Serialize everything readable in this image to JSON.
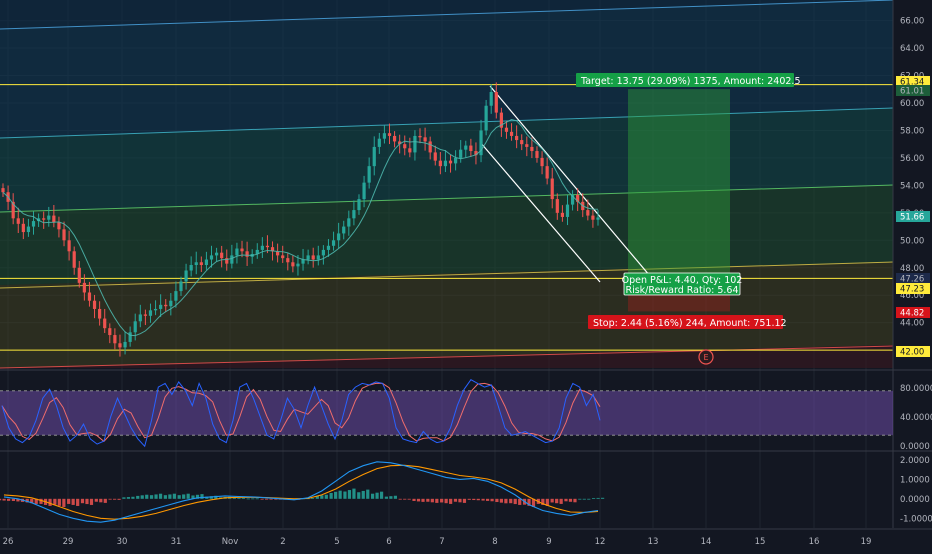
{
  "colors": {
    "background": "#131722",
    "grid": "#1f2430",
    "axis_text": "#b2b5be",
    "up": "#26a69a",
    "down": "#ef5350",
    "yellow_line": "#ffeb3b",
    "target_box": "#15a046",
    "stop_box": "#d5131a",
    "stoch_k": "#2962ff",
    "stoch_d": "#ef6c6c",
    "stoch_band": "#7e57c2",
    "macd_line": "#2196f3",
    "signal_line": "#ff9800",
    "hist_up": "#26a69a",
    "hist_down": "#ef5350"
  },
  "chart_data": [
    {
      "type": "candlestick",
      "title": "",
      "x_ticks": [
        "26",
        "29",
        "30",
        "31",
        "Nov",
        "2",
        "5",
        "6",
        "7",
        "8",
        "9",
        "12",
        "13",
        "14",
        "15",
        "16",
        "19"
      ],
      "y_ticks": [
        "66.00",
        "64.00",
        "62.00",
        "60.00",
        "58.00",
        "56.00",
        "54.00",
        "52.00",
        "50.00",
        "48.00",
        "46.00",
        "44.00",
        "42.00"
      ],
      "ylim": [
        40.7,
        67.5
      ],
      "closes": [
        53.5,
        52.8,
        51.6,
        51.2,
        50.6,
        51.0,
        51.4,
        51.6,
        51.5,
        51.8,
        51.3,
        50.8,
        50.0,
        49.2,
        48.0,
        46.9,
        46.2,
        45.6,
        45.0,
        44.3,
        43.6,
        43.1,
        42.5,
        42.2,
        42.6,
        43.3,
        44.1,
        44.6,
        44.5,
        44.9,
        45.0,
        45.3,
        45.2,
        45.6,
        46.3,
        47.0,
        47.8,
        48.2,
        48.4,
        48.2,
        48.6,
        48.9,
        49.1,
        48.7,
        48.3,
        48.9,
        49.4,
        49.2,
        48.8,
        49.0,
        49.3,
        49.6,
        49.5,
        49.2,
        48.9,
        48.7,
        48.4,
        48.1,
        48.3,
        48.6,
        48.9,
        48.6,
        48.9,
        49.3,
        49.6,
        50.0,
        50.5,
        51.0,
        51.6,
        52.2,
        53.0,
        54.2,
        55.4,
        56.8,
        57.4,
        57.8,
        57.6,
        57.2,
        57.0,
        56.7,
        56.4,
        57.6,
        57.5,
        57.2,
        56.4,
        55.8,
        55.4,
        55.8,
        55.6,
        56.0,
        56.6,
        56.9,
        56.5,
        56.2,
        58.0,
        59.8,
        60.8,
        59.3,
        58.2,
        57.9,
        57.6,
        57.3,
        57.0,
        56.8,
        56.5,
        56.0,
        55.4,
        54.5,
        53.0,
        52.0,
        51.7,
        52.6,
        53.3,
        52.8,
        52.2,
        51.8,
        51.5,
        51.66
      ],
      "x_range": [
        0,
        140
      ],
      "price_labels": [
        {
          "text": "61.34",
          "bg": "#ffeb3b",
          "fg": "#131722"
        },
        {
          "text": "61.01",
          "bg": "#1d5e3a",
          "fg": "#b2b5be"
        },
        {
          "text": "51.66",
          "bg": "#26a69a",
          "fg": "#ffffff"
        },
        {
          "text": "47.26",
          "bg": "#1d2a4a",
          "fg": "#b2b5be"
        },
        {
          "text": "47.23",
          "bg": "#ffeb3b",
          "fg": "#131722"
        },
        {
          "text": "44.82",
          "bg": "#d5131a",
          "fg": "#ffffff"
        },
        {
          "text": "42.00",
          "bg": "#ffeb3b",
          "fg": "#131722"
        }
      ],
      "position_tool": {
        "target_text": "Target: 13.75 (29.09%) 1375, Amount: 2402.5",
        "open_text_1": "Open P&L: 4.40, Qty: 102",
        "open_text_2": "Risk/Reward Ratio: 5.64",
        "stop_text": "Stop: 2.44 (5.16%) 244, Amount: 751.12",
        "entry_price": 47.26,
        "target_price": 61.01,
        "stop_price": 44.82
      },
      "horizontal_levels": [
        61.34,
        47.23,
        42.0
      ],
      "event_marker": "E"
    },
    {
      "type": "line",
      "indicator": "stochastic",
      "y_ticks": [
        "80.0000",
        "40.0000",
        "0.0000"
      ],
      "ylim": [
        0,
        100
      ],
      "band": [
        20,
        80
      ],
      "k": [
        60,
        30,
        15,
        10,
        18,
        40,
        70,
        82,
        60,
        30,
        12,
        20,
        35,
        15,
        8,
        12,
        45,
        70,
        50,
        30,
        15,
        5,
        40,
        85,
        90,
        75,
        92,
        80,
        60,
        90,
        70,
        35,
        15,
        10,
        40,
        85,
        90,
        70,
        45,
        20,
        15,
        40,
        70,
        55,
        30,
        60,
        85,
        60,
        35,
        15,
        40,
        75,
        85,
        90,
        88,
        92,
        90,
        70,
        30,
        15,
        12,
        10,
        25,
        15,
        10,
        12,
        30,
        60,
        82,
        95,
        90,
        85,
        88,
        60,
        30,
        20,
        22,
        25,
        20,
        15,
        10,
        12,
        30,
        70,
        90,
        85,
        60,
        75,
        40
      ]
    },
    {
      "type": "line",
      "indicator": "macd",
      "y_ticks": [
        "2.0000",
        "1.0000",
        "0.0000",
        "-1.0000"
      ],
      "ylim": [
        -1.5,
        2.2
      ],
      "macd": [
        0.1,
        0.0,
        -0.2,
        -0.5,
        -0.8,
        -1.0,
        -1.15,
        -1.2,
        -1.1,
        -0.9,
        -0.7,
        -0.5,
        -0.3,
        -0.1,
        0.05,
        0.1,
        0.15,
        0.12,
        0.1,
        0.05,
        0.0,
        -0.05,
        0.05,
        0.4,
        0.9,
        1.4,
        1.7,
        1.9,
        1.85,
        1.7,
        1.5,
        1.3,
        1.1,
        1.0,
        1.05,
        0.9,
        0.6,
        0.2,
        -0.3,
        -0.6,
        -0.75,
        -0.85,
        -0.7,
        -0.6
      ],
      "signal": [
        0.2,
        0.15,
        0.05,
        -0.15,
        -0.4,
        -0.65,
        -0.85,
        -1.0,
        -1.05,
        -1.0,
        -0.9,
        -0.75,
        -0.55,
        -0.35,
        -0.18,
        -0.05,
        0.05,
        0.08,
        0.08,
        0.06,
        0.03,
        0.0,
        0.02,
        0.2,
        0.5,
        0.9,
        1.25,
        1.55,
        1.7,
        1.72,
        1.65,
        1.5,
        1.35,
        1.2,
        1.12,
        1.02,
        0.82,
        0.5,
        0.1,
        -0.25,
        -0.5,
        -0.68,
        -0.7,
        -0.65
      ],
      "histogram": [
        -0.1,
        -0.15,
        -0.25,
        -0.35,
        -0.4,
        -0.35,
        -0.3,
        -0.2,
        -0.05,
        0.1,
        0.2,
        0.25,
        0.25,
        0.25,
        0.23,
        0.15,
        0.1,
        0.04,
        0.02,
        -0.01,
        -0.03,
        -0.05,
        0.03,
        0.2,
        0.4,
        0.5,
        0.45,
        0.35,
        0.15,
        -0.02,
        -0.15,
        -0.2,
        -0.25,
        -0.2,
        -0.07,
        -0.12,
        -0.22,
        -0.3,
        -0.4,
        -0.35,
        -0.25,
        -0.17,
        0.0,
        0.05
      ]
    }
  ]
}
